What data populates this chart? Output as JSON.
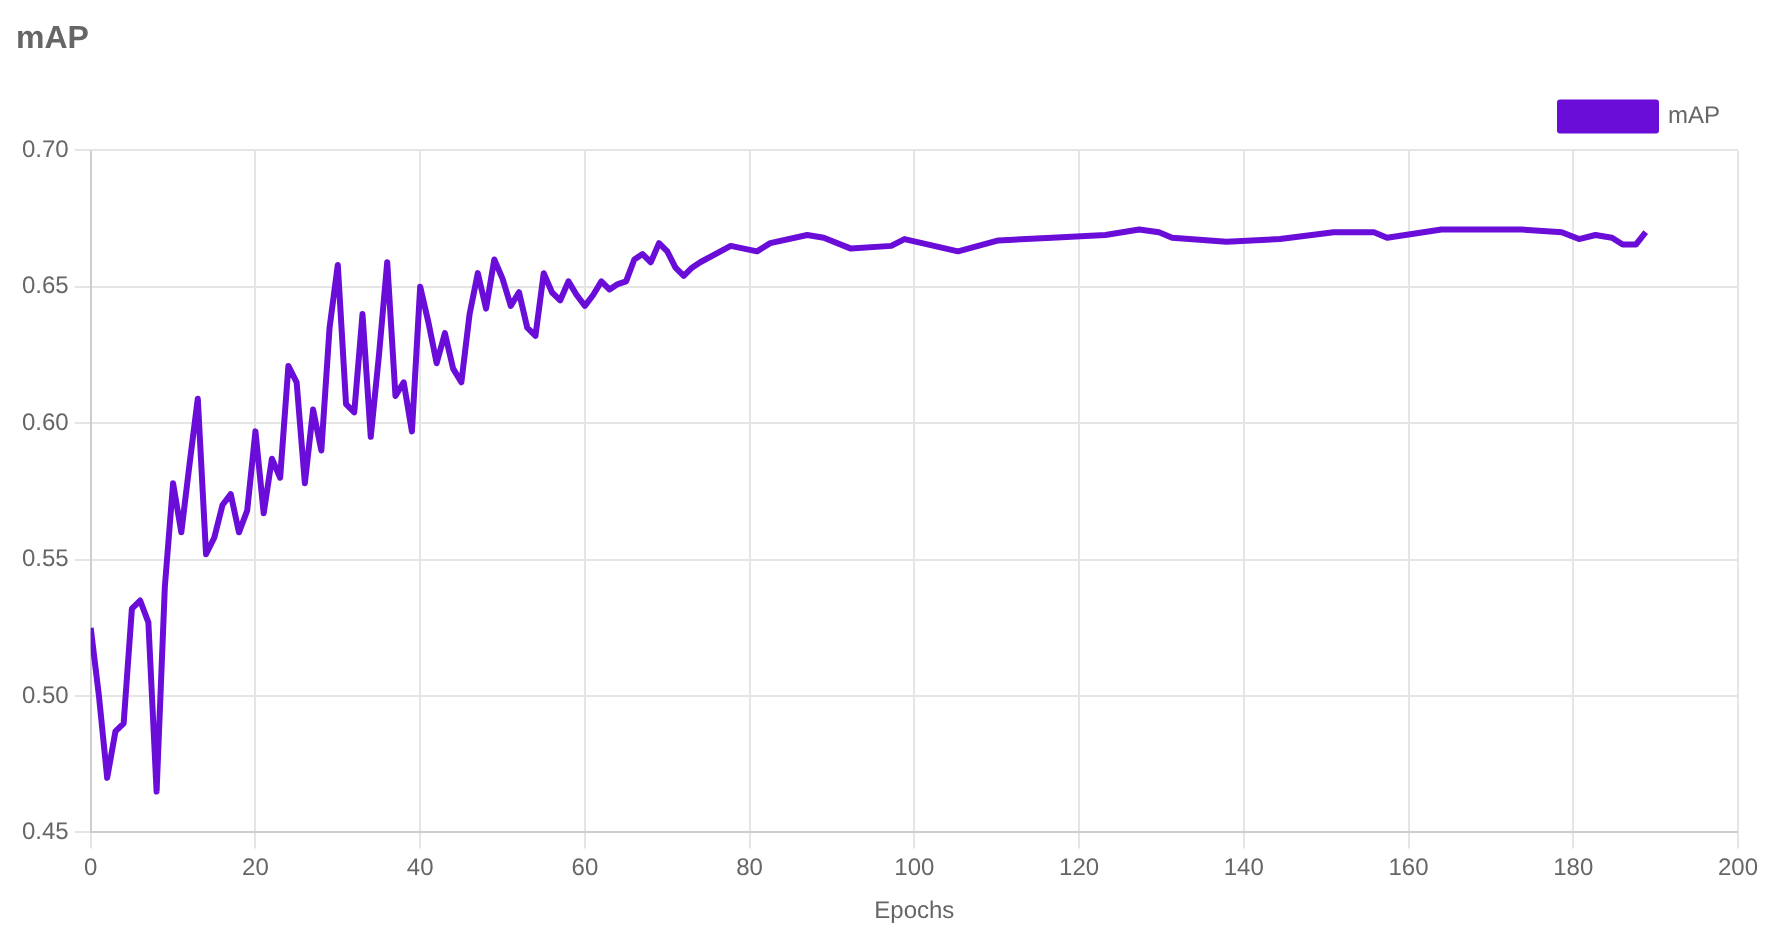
{
  "chart_data": {
    "type": "line",
    "title": "mAP",
    "xlabel": "Epochs",
    "xlim": [
      0,
      200
    ],
    "xticks": [
      0,
      20,
      40,
      60,
      80,
      100,
      120,
      140,
      160,
      180,
      200
    ],
    "ylim": [
      0.45,
      0.7
    ],
    "yticks": [
      0.45,
      {
        "value": 0.5,
        "label": "0.50"
      },
      0.55,
      {
        "value": 0.6,
        "label": "0.60"
      },
      0.65,
      {
        "value": 0.7,
        "label": "0.70"
      }
    ],
    "grid": true,
    "legend": "top right",
    "marker": "none",
    "line_style": "solid",
    "x": [
      0,
      1,
      2,
      3,
      4,
      5,
      6,
      7,
      8,
      9,
      10,
      11,
      12,
      13,
      14,
      15,
      16,
      17,
      18,
      19,
      20,
      21,
      22,
      23,
      24,
      25,
      26,
      27,
      28,
      29,
      30,
      31,
      32,
      33,
      34,
      35,
      36,
      37,
      38,
      39,
      40,
      41,
      42,
      43,
      44,
      45,
      46,
      47,
      48,
      49,
      50,
      51,
      52,
      53,
      54,
      55,
      56,
      57,
      58,
      59,
      60,
      61,
      62,
      63,
      64,
      65,
      66,
      67,
      68,
      69,
      70,
      71,
      72,
      73,
      74,
      77.7,
      80.9,
      82.5,
      87,
      89,
      92.3,
      97.2,
      98.8,
      105.3,
      110.2,
      116.7,
      123.2,
      127.3,
      129.7,
      131.3,
      137.9,
      144.4,
      150.9,
      155.8,
      157.4,
      164,
      173.7,
      178.6,
      180.7,
      182.7,
      184.7,
      186,
      187.6,
      188.8
    ],
    "series": [
      {
        "name": "mAP",
        "color": "#6a0dd8",
        "values": [
          0.525,
          0.5,
          0.47,
          0.487,
          0.49,
          0.532,
          0.535,
          0.527,
          0.465,
          0.54,
          0.578,
          0.56,
          0.585,
          0.609,
          0.552,
          0.558,
          0.57,
          0.574,
          0.56,
          0.568,
          0.597,
          0.567,
          0.587,
          0.58,
          0.621,
          0.615,
          0.578,
          0.605,
          0.59,
          0.635,
          0.658,
          0.607,
          0.604,
          0.64,
          0.595,
          0.625,
          0.659,
          0.61,
          0.615,
          0.597,
          0.65,
          0.637,
          0.622,
          0.633,
          0.62,
          0.615,
          0.64,
          0.655,
          0.642,
          0.66,
          0.653,
          0.643,
          0.648,
          0.635,
          0.632,
          0.655,
          0.648,
          0.645,
          0.652,
          0.647,
          0.643,
          0.647,
          0.652,
          0.649,
          0.651,
          0.652,
          0.66,
          0.662,
          0.659,
          0.666,
          0.663,
          0.657,
          0.654,
          0.657,
          0.659,
          0.665,
          0.663,
          0.666,
          0.669,
          0.668,
          0.664,
          0.665,
          0.6675,
          0.663,
          0.667,
          0.668,
          0.669,
          0.671,
          0.67,
          0.668,
          0.6665,
          0.6675,
          0.67,
          0.67,
          0.668,
          0.671,
          0.671,
          0.67,
          0.6675,
          0.669,
          0.668,
          0.6655,
          0.6655,
          0.67
        ]
      }
    ]
  }
}
